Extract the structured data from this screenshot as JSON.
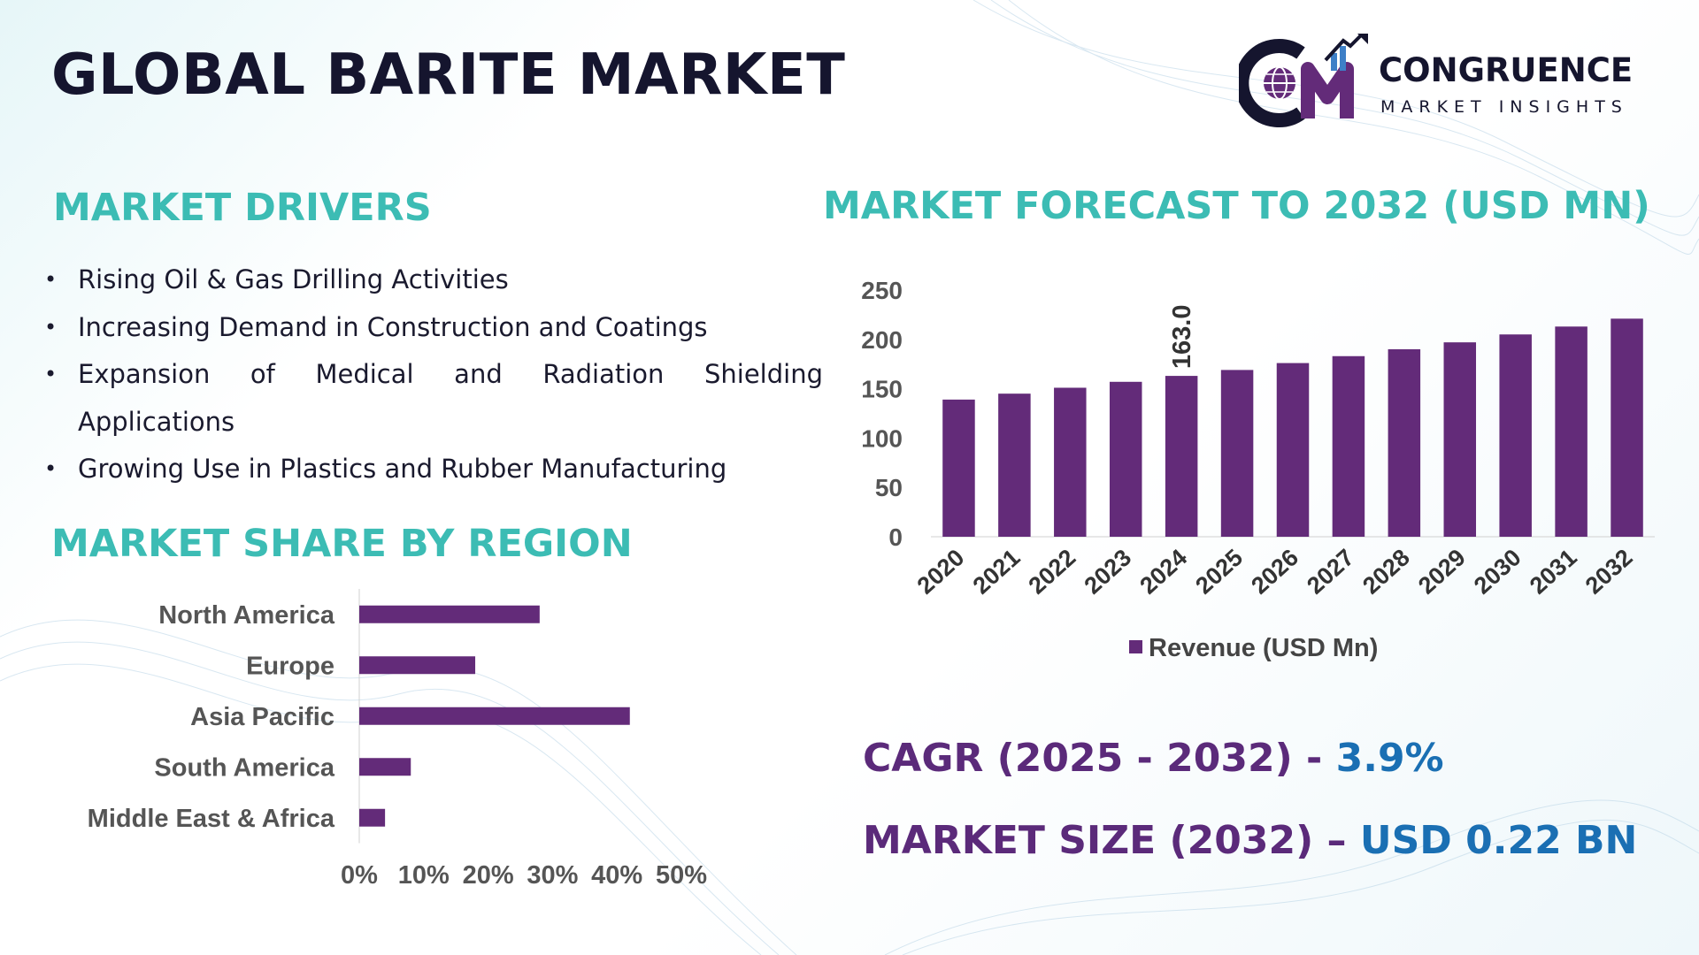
{
  "header": {
    "title": "GLOBAL BARITE MARKET",
    "logo_line1": "CONGRUENCE",
    "logo_line2": "MARKET INSIGHTS",
    "logo_letters": "CM"
  },
  "drivers": {
    "heading": "MARKET DRIVERS",
    "items": [
      "Rising Oil & Gas Drilling Activities",
      "Increasing Demand in Construction and Coatings",
      "Expansion of Medical and Radiation Shielding Applications",
      "Growing Use in Plastics and Rubber Manufacturing"
    ]
  },
  "forecast": {
    "heading": "MARKET FORECAST TO 2032 (USD MN)"
  },
  "region": {
    "heading": "MARKET SHARE BY REGION"
  },
  "stats": {
    "cagr_label": "CAGR (2025 - 2032) - ",
    "cagr_value": "3.9%",
    "size_label": "MARKET SIZE (2032) – ",
    "size_value": "USD 0.22 BN"
  },
  "colors": {
    "accent_teal": "#3cbcb4",
    "bar_purple": "#632b79",
    "stat_purple": "#5b2a7a",
    "stat_blue": "#1a6fb3",
    "title_dark": "#15152e"
  },
  "chart_data": [
    {
      "type": "bar",
      "orientation": "vertical",
      "categories": [
        "2020",
        "2021",
        "2022",
        "2023",
        "2024",
        "2025",
        "2026",
        "2027",
        "2028",
        "2029",
        "2030",
        "2031",
        "2032"
      ],
      "series": [
        {
          "name": "Revenue (USD Mn)",
          "values": [
            139,
            145,
            151,
            157,
            163.0,
            169,
            176,
            183,
            190,
            197,
            205,
            213,
            221
          ]
        }
      ],
      "data_labels": [
        {
          "category": "2024",
          "label": "163.0"
        }
      ],
      "ylim": [
        0,
        250
      ],
      "yticks": [
        0,
        50,
        100,
        150,
        200,
        250
      ],
      "legend": "bottom",
      "grid": false
    },
    {
      "type": "bar",
      "orientation": "horizontal",
      "categories": [
        "North America",
        "Europe",
        "Asia Pacific",
        "South America",
        "Middle East & Africa"
      ],
      "values": [
        28,
        18,
        42,
        8,
        4
      ],
      "xlim": [
        0,
        50
      ],
      "xticks": [
        "0%",
        "10%",
        "20%",
        "30%",
        "40%",
        "50%"
      ],
      "grid": false
    }
  ]
}
